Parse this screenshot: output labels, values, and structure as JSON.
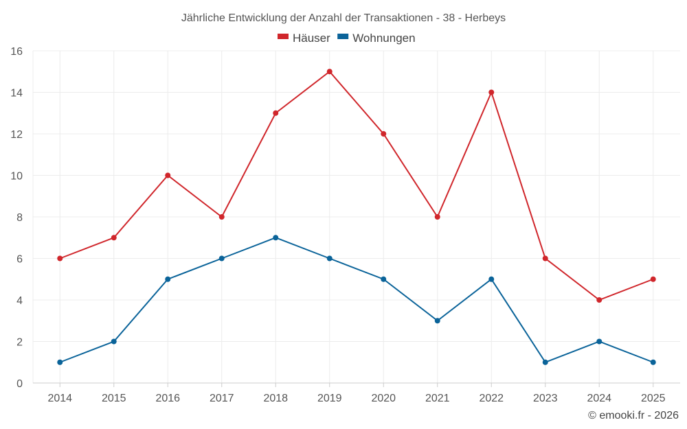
{
  "chart_data": {
    "type": "line",
    "title": "Jährliche Entwicklung der Anzahl der Transaktionen - 38 - Herbeys",
    "x": [
      "2014",
      "2015",
      "2016",
      "2017",
      "2018",
      "2019",
      "2020",
      "2021",
      "2022",
      "2023",
      "2024",
      "2025"
    ],
    "series": [
      {
        "name": "Häuser",
        "color": "#d0262b",
        "values": [
          6,
          7,
          10,
          8,
          13,
          15,
          12,
          8,
          14,
          6,
          4,
          5
        ]
      },
      {
        "name": "Wohnungen",
        "color": "#0a6399",
        "values": [
          1,
          2,
          5,
          6,
          7,
          6,
          5,
          3,
          5,
          1,
          2,
          1
        ]
      }
    ],
    "ylim": [
      0,
      16
    ],
    "yticks": [
      0,
      2,
      4,
      6,
      8,
      10,
      12,
      14,
      16
    ],
    "grid": true,
    "legend_position": "top-center"
  },
  "credit": "© emooki.fr - 2026"
}
